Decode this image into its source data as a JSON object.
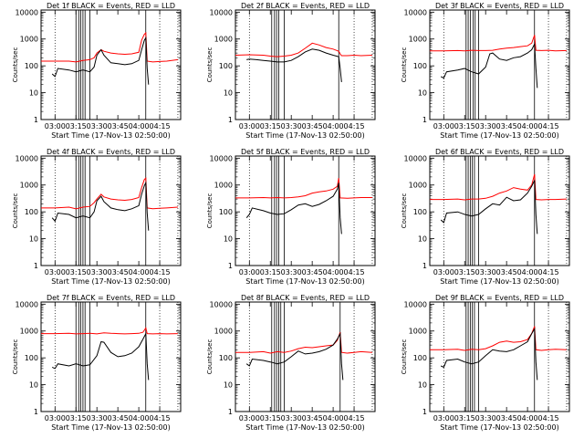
{
  "shared": {
    "xlabel": "Start Time (17-Nov-13 02:50:00)",
    "ylabel": "Counts/sec",
    "x_ticks": [
      "03:00",
      "03:15",
      "03:30",
      "03:45",
      "04:00",
      "04:15"
    ],
    "x_tick_minutes": [
      10,
      25,
      40,
      55,
      70,
      85
    ],
    "xlim_minutes": [
      0,
      100
    ],
    "y_ticks": [
      "1",
      "10",
      "100",
      "1000",
      "10000"
    ],
    "y_tick_values": [
      1,
      10,
      100,
      1000,
      10000
    ],
    "ylim": [
      1,
      12000
    ],
    "y_scale": "log",
    "colors": {
      "events": "#000000",
      "lld": "#ff0000",
      "frame": "#000000"
    },
    "dotted_vlines_minutes": [
      10,
      85,
      98
    ],
    "grid": false
  },
  "chart_data": [
    {
      "type": "line",
      "title": "Det 1f BLACK = Events, RED = LLD",
      "solid_vlines_minutes": [
        25,
        27,
        28.5,
        30,
        31.5,
        35,
        75
      ],
      "series": [
        {
          "color": "#ff0000",
          "x": [
            0,
            10,
            20,
            25,
            30,
            35,
            38,
            40,
            43,
            45,
            50,
            55,
            60,
            65,
            70,
            72,
            74,
            75,
            76,
            80,
            85,
            90,
            98
          ],
          "y": [
            150,
            150,
            150,
            140,
            160,
            170,
            200,
            300,
            400,
            350,
            300,
            280,
            270,
            280,
            320,
            900,
            1500,
            1700,
            150,
            140,
            145,
            150,
            170
          ]
        },
        {
          "color": "#000000",
          "x": [
            8,
            10,
            12,
            20,
            25,
            30,
            35,
            38,
            40,
            43,
            45,
            50,
            55,
            60,
            65,
            70,
            72,
            74,
            75,
            76,
            77
          ],
          "y": [
            50,
            40,
            80,
            70,
            60,
            70,
            60,
            90,
            250,
            400,
            250,
            130,
            120,
            110,
            120,
            160,
            400,
            900,
            1100,
            80,
            20
          ]
        }
      ]
    },
    {
      "type": "line",
      "title": "Det 2f BLACK = Events, RED = LLD",
      "solid_vlines_minutes": [
        26,
        28,
        29.5,
        31,
        35,
        74
      ],
      "series": [
        {
          "color": "#ff0000",
          "x": [
            0,
            10,
            20,
            25,
            30,
            35,
            40,
            45,
            50,
            55,
            60,
            65,
            70,
            74,
            75,
            76,
            80,
            85,
            90,
            98
          ],
          "y": [
            250,
            260,
            250,
            230,
            220,
            230,
            250,
            300,
            450,
            700,
            600,
            480,
            420,
            350,
            280,
            240,
            240,
            250,
            240,
            250
          ]
        },
        {
          "color": "#000000",
          "x": [
            8,
            10,
            15,
            20,
            25,
            30,
            35,
            40,
            45,
            50,
            55,
            60,
            65,
            70,
            74,
            75,
            76
          ],
          "y": [
            170,
            180,
            170,
            160,
            150,
            140,
            140,
            160,
            220,
            330,
            420,
            380,
            300,
            250,
            220,
            80,
            25
          ]
        }
      ]
    },
    {
      "type": "line",
      "title": "Det 3f BLACK = Events, RED = LLD",
      "solid_vlines_minutes": [
        26,
        27.5,
        29,
        31,
        32.5,
        35,
        75
      ],
      "series": [
        {
          "color": "#ff0000",
          "x": [
            0,
            10,
            20,
            25,
            30,
            35,
            40,
            45,
            50,
            55,
            60,
            65,
            70,
            73,
            75,
            76,
            80,
            85,
            90,
            98
          ],
          "y": [
            360,
            360,
            370,
            360,
            380,
            370,
            370,
            380,
            420,
            460,
            480,
            520,
            560,
            700,
            1400,
            380,
            370,
            380,
            360,
            370
          ]
        },
        {
          "color": "#000000",
          "x": [
            8,
            10,
            12,
            20,
            25,
            30,
            35,
            40,
            43,
            45,
            50,
            55,
            60,
            65,
            70,
            73,
            75,
            76,
            77
          ],
          "y": [
            40,
            35,
            60,
            70,
            80,
            60,
            50,
            90,
            280,
            300,
            180,
            160,
            200,
            220,
            300,
            400,
            650,
            80,
            15
          ]
        }
      ]
    },
    {
      "type": "line",
      "title": "Det 4f BLACK = Events, RED = LLD",
      "solid_vlines_minutes": [
        25,
        27,
        28.5,
        30,
        31.5,
        35,
        75
      ],
      "series": [
        {
          "color": "#ff0000",
          "x": [
            0,
            10,
            20,
            25,
            30,
            35,
            38,
            40,
            43,
            45,
            50,
            55,
            60,
            65,
            70,
            72,
            74,
            75,
            76,
            80,
            85,
            90,
            98
          ],
          "y": [
            140,
            140,
            150,
            130,
            150,
            160,
            220,
            300,
            450,
            360,
            300,
            280,
            270,
            290,
            340,
            800,
            1600,
            1800,
            140,
            130,
            135,
            140,
            150
          ]
        },
        {
          "color": "#000000",
          "x": [
            8,
            10,
            12,
            20,
            25,
            30,
            35,
            38,
            40,
            43,
            45,
            50,
            55,
            60,
            65,
            70,
            72,
            74,
            75,
            76,
            77
          ],
          "y": [
            60,
            45,
            90,
            80,
            60,
            70,
            60,
            100,
            260,
            380,
            240,
            140,
            120,
            110,
            130,
            170,
            450,
            950,
            1200,
            90,
            20
          ]
        }
      ]
    },
    {
      "type": "line",
      "title": "Det 5f BLACK = Events, RED = LLD",
      "solid_vlines_minutes": [
        26,
        28,
        29.5,
        31,
        35,
        74
      ],
      "series": [
        {
          "color": "#ff0000",
          "x": [
            0,
            10,
            20,
            25,
            30,
            35,
            40,
            45,
            50,
            55,
            60,
            65,
            70,
            73,
            74,
            75,
            80,
            85,
            90,
            98
          ],
          "y": [
            330,
            330,
            340,
            330,
            340,
            330,
            340,
            360,
            400,
            500,
            560,
            600,
            700,
            900,
            1800,
            330,
            320,
            330,
            340,
            340
          ]
        },
        {
          "color": "#000000",
          "x": [
            8,
            10,
            12,
            20,
            25,
            30,
            35,
            40,
            45,
            50,
            55,
            60,
            65,
            70,
            73,
            74,
            75,
            76
          ],
          "y": [
            60,
            80,
            140,
            110,
            90,
            80,
            85,
            120,
            180,
            200,
            160,
            190,
            260,
            380,
            700,
            1200,
            60,
            15
          ]
        }
      ]
    },
    {
      "type": "line",
      "title": "Det 6f BLACK = Events, RED = LLD",
      "solid_vlines_minutes": [
        26,
        27.5,
        29,
        30.5,
        32,
        35,
        75
      ],
      "series": [
        {
          "color": "#ff0000",
          "x": [
            0,
            10,
            20,
            25,
            30,
            35,
            40,
            45,
            50,
            55,
            60,
            65,
            70,
            73,
            75,
            76,
            80,
            85,
            90,
            98
          ],
          "y": [
            290,
            290,
            300,
            280,
            300,
            300,
            320,
            380,
            500,
            600,
            800,
            700,
            650,
            1000,
            2500,
            290,
            280,
            290,
            290,
            300
          ]
        },
        {
          "color": "#000000",
          "x": [
            8,
            10,
            12,
            20,
            25,
            30,
            35,
            40,
            45,
            50,
            55,
            60,
            65,
            70,
            73,
            75,
            76,
            77
          ],
          "y": [
            50,
            40,
            90,
            100,
            80,
            70,
            80,
            130,
            200,
            180,
            350,
            260,
            280,
            500,
            900,
            1500,
            80,
            15
          ]
        }
      ]
    },
    {
      "type": "line",
      "title": "Det 7f BLACK = Events, RED = LLD",
      "solid_vlines_minutes": [
        25,
        27,
        28.5,
        30,
        31.5,
        35,
        75
      ],
      "series": [
        {
          "color": "#ff0000",
          "x": [
            0,
            10,
            20,
            25,
            30,
            35,
            40,
            45,
            50,
            55,
            60,
            65,
            70,
            73,
            75,
            76,
            80,
            85,
            90,
            98
          ],
          "y": [
            800,
            800,
            820,
            780,
            800,
            820,
            780,
            850,
            820,
            800,
            780,
            800,
            820,
            900,
            1300,
            800,
            780,
            800,
            780,
            800
          ]
        },
        {
          "color": "#000000",
          "x": [
            8,
            10,
            12,
            20,
            25,
            30,
            35,
            40,
            43,
            45,
            50,
            55,
            60,
            65,
            70,
            73,
            75,
            76,
            77
          ],
          "y": [
            45,
            40,
            60,
            50,
            60,
            50,
            55,
            120,
            400,
            380,
            160,
            110,
            120,
            150,
            260,
            500,
            800,
            60,
            15
          ]
        }
      ]
    },
    {
      "type": "line",
      "title": "Det 8f BLACK = Events, RED = LLD",
      "solid_vlines_minutes": [
        26,
        28,
        29.5,
        31,
        32.5,
        35,
        75
      ],
      "series": [
        {
          "color": "#ff0000",
          "x": [
            0,
            10,
            20,
            25,
            30,
            35,
            40,
            45,
            50,
            55,
            60,
            65,
            70,
            73,
            75,
            76,
            80,
            85,
            90,
            98
          ],
          "y": [
            160,
            160,
            170,
            150,
            170,
            160,
            180,
            220,
            250,
            240,
            260,
            280,
            300,
            450,
            900,
            160,
            150,
            160,
            170,
            160
          ]
        },
        {
          "color": "#000000",
          "x": [
            8,
            10,
            12,
            20,
            25,
            30,
            35,
            40,
            45,
            50,
            55,
            60,
            65,
            70,
            73,
            75,
            76,
            77
          ],
          "y": [
            60,
            50,
            90,
            80,
            70,
            60,
            70,
            110,
            180,
            140,
            150,
            170,
            210,
            300,
            500,
            800,
            60,
            15
          ]
        }
      ]
    },
    {
      "type": "line",
      "title": "Det 9f BLACK = Events, RED = LLD",
      "solid_vlines_minutes": [
        26,
        27.5,
        29,
        30.5,
        32,
        35,
        75
      ],
      "series": [
        {
          "color": "#ff0000",
          "x": [
            0,
            10,
            20,
            25,
            30,
            35,
            40,
            45,
            50,
            55,
            60,
            65,
            70,
            73,
            75,
            76,
            80,
            85,
            90,
            98
          ],
          "y": [
            200,
            200,
            210,
            190,
            210,
            200,
            220,
            280,
            380,
            420,
            380,
            400,
            480,
            800,
            1500,
            200,
            190,
            200,
            210,
            200
          ]
        },
        {
          "color": "#000000",
          "x": [
            8,
            10,
            12,
            20,
            25,
            30,
            35,
            40,
            45,
            50,
            55,
            60,
            65,
            70,
            73,
            75,
            76,
            77
          ],
          "y": [
            50,
            45,
            80,
            90,
            70,
            60,
            70,
            120,
            200,
            180,
            170,
            200,
            280,
            400,
            800,
            1200,
            70,
            15
          ]
        }
      ]
    }
  ]
}
